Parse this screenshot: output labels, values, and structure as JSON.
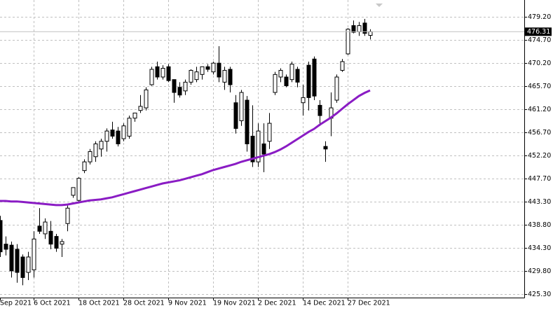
{
  "chart_data": {
    "type": "candlestick",
    "categories": [
      "Sep 2021",
      null,
      null,
      null,
      null,
      null,
      "6 Oct 2021",
      null,
      null,
      null,
      null,
      null,
      null,
      null,
      "18 Oct 2021",
      null,
      null,
      null,
      null,
      null,
      null,
      null,
      "28 Oct 2021",
      null,
      null,
      null,
      null,
      null,
      null,
      null,
      "9 Nov 2021",
      null,
      null,
      null,
      null,
      null,
      null,
      null,
      "19 Nov 2021",
      null,
      null,
      null,
      null,
      null,
      null,
      null,
      "2 Dec 2021",
      null,
      null,
      null,
      null,
      null,
      null,
      null,
      "14 Dec 2021",
      null,
      null,
      null,
      null,
      null,
      null,
      null,
      "27 Dec 2021",
      null,
      null,
      null,
      null
    ],
    "open": [
      439.6,
      435.0,
      434.8,
      434.0,
      432.5,
      429.5,
      430.0,
      438.5,
      437.0,
      437.5,
      436.5,
      435.0,
      439.0,
      444.5,
      443.5,
      449.3,
      451.0,
      452.0,
      453.5,
      455.0,
      457.2,
      457.0,
      455.5,
      456.0,
      459.5,
      461.0,
      461.5,
      466.0,
      469.5,
      467.5,
      469.5,
      467.0,
      465.5,
      464.8,
      466.5,
      467.0,
      468.0,
      469.5,
      468.5,
      470.2,
      466.5,
      469.0,
      462.5,
      459.0,
      463.0,
      456.0,
      451.0,
      454.5,
      455.0,
      464.5,
      467.5,
      467.5,
      467.0,
      469.0,
      462.5,
      469.8,
      471.0,
      462.0,
      454.0,
      459.5,
      463.0,
      468.8,
      472.0,
      477.5,
      476.3,
      478.0,
      475.6
    ],
    "high": [
      440.5,
      436.5,
      435.5,
      435.0,
      433.0,
      433.5,
      437.5,
      442.0,
      440.0,
      439.5,
      437.0,
      436.0,
      442.5,
      446.0,
      448.0,
      451.5,
      453.5,
      455.0,
      455.5,
      457.5,
      458.8,
      457.8,
      458.5,
      460.0,
      460.5,
      464.0,
      465.5,
      469.5,
      470.5,
      469.8,
      470.0,
      467.0,
      466.5,
      467.0,
      469.0,
      469.5,
      469.5,
      470.0,
      470.5,
      473.5,
      469.5,
      469.5,
      464.0,
      465.0,
      463.8,
      462.0,
      458.5,
      458.5,
      460.5,
      468.5,
      469.2,
      468.0,
      470.5,
      469.5,
      466.0,
      470.5,
      471.5,
      463.0,
      455.0,
      464.5,
      468.0,
      471.0,
      477.0,
      478.5,
      478.2,
      478.8,
      476.8
    ],
    "low": [
      432.5,
      432.8,
      428.5,
      427.5,
      427.0,
      428.0,
      428.5,
      437.0,
      436.0,
      434.0,
      433.5,
      432.5,
      437.5,
      444.0,
      443.3,
      448.8,
      450.5,
      451.0,
      452.0,
      453.0,
      455.5,
      454.0,
      455.0,
      455.5,
      458.8,
      460.5,
      461.0,
      465.8,
      467.0,
      467.0,
      466.5,
      462.5,
      463.5,
      464.0,
      466.0,
      466.5,
      467.0,
      468.5,
      468.0,
      466.5,
      465.0,
      464.5,
      456.5,
      458.0,
      453.0,
      450.0,
      450.0,
      449.0,
      453.5,
      464.0,
      466.5,
      465.5,
      466.5,
      465.5,
      460.0,
      461.0,
      463.0,
      458.0,
      451.0,
      456.0,
      462.5,
      468.5,
      471.8,
      476.0,
      475.5,
      475.5,
      474.8
    ],
    "close": [
      433.5,
      434.0,
      429.8,
      429.5,
      428.5,
      432.5,
      436.0,
      437.5,
      439.3,
      435.0,
      434.2,
      435.5,
      442.0,
      446.0,
      447.8,
      451.0,
      453.0,
      454.5,
      455.0,
      457.0,
      456.0,
      454.5,
      458.0,
      459.5,
      460.5,
      461.8,
      465.0,
      469.0,
      467.5,
      469.2,
      466.8,
      464.5,
      464.0,
      466.5,
      468.8,
      468.5,
      469.5,
      469.0,
      470.2,
      467.5,
      468.8,
      466.0,
      457.5,
      464.5,
      454.5,
      451.0,
      457.0,
      452.5,
      458.5,
      468.0,
      468.8,
      465.8,
      470.0,
      466.5,
      463.5,
      463.5,
      463.8,
      460.0,
      453.5,
      461.5,
      467.5,
      470.5,
      476.8,
      476.2,
      477.5,
      476.0,
      476.31
    ],
    "ma": [
      443.4,
      443.4,
      443.3,
      443.3,
      443.2,
      443.1,
      443.0,
      442.9,
      442.8,
      442.7,
      442.6,
      442.6,
      442.7,
      442.9,
      443.1,
      443.3,
      443.5,
      443.6,
      443.7,
      443.9,
      444.1,
      444.4,
      444.7,
      445.0,
      445.3,
      445.6,
      445.9,
      446.2,
      446.5,
      446.8,
      447.0,
      447.2,
      447.4,
      447.7,
      448.0,
      448.3,
      448.6,
      449.0,
      449.4,
      449.7,
      450.0,
      450.3,
      450.6,
      451.0,
      451.3,
      451.6,
      451.9,
      452.2,
      452.5,
      452.9,
      453.4,
      454.0,
      454.7,
      455.4,
      456.1,
      456.8,
      457.4,
      458.2,
      458.9,
      459.6,
      460.4,
      461.3,
      462.2,
      463.0,
      463.8,
      464.4,
      464.9
    ],
    "up_color": "#ffffff",
    "down_color": "#000000",
    "ma_color": "#8a1cc4",
    "last_price": 476.31,
    "ylim": [
      424.6,
      481.8
    ],
    "yticks": [
      {
        "value": 425.3,
        "label": "425.30"
      },
      {
        "value": 429.8,
        "label": "429.80"
      },
      {
        "value": 434.3,
        "label": "434.30"
      },
      {
        "value": 438.8,
        "label": "438.80"
      },
      {
        "value": 443.3,
        "label": "443.30"
      },
      {
        "value": 447.7,
        "label": "447.70"
      },
      {
        "value": 452.2,
        "label": "452.20"
      },
      {
        "value": 456.7,
        "label": "456.70"
      },
      {
        "value": 461.2,
        "label": "461.20"
      },
      {
        "value": 465.7,
        "label": "465.70"
      },
      {
        "value": 470.2,
        "label": "470.20"
      },
      {
        "value": 474.7,
        "label": "474.70"
      },
      {
        "value": 479.2,
        "label": "479.20"
      }
    ],
    "grid": true
  }
}
